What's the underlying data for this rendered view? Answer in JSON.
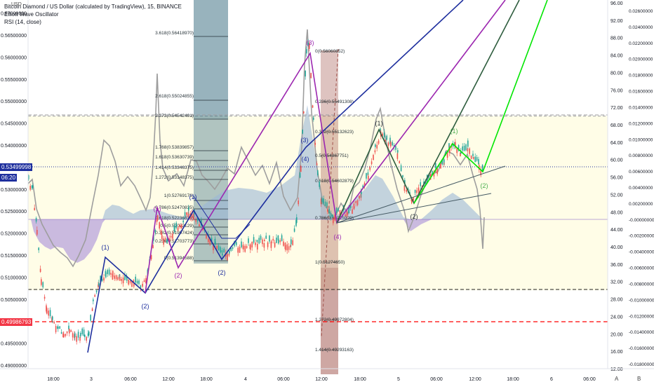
{
  "header": {
    "title": "Bitcoin Diamond / US Dollar (calculated by TradingView), 15, BINANCE",
    "indicators": [
      "Elliott Wave Oscillator",
      "RSI (14, close)"
    ],
    "usd_label": "USD"
  },
  "price_tags": {
    "current": "0.53499998",
    "countdown": "06:20",
    "red_line": "0.49986793"
  },
  "footer": {
    "auto": "A",
    "log": "B"
  },
  "chart_data": {
    "type": "line",
    "title": "Bitcoin Diamond / US Dollar (calculated by TradingView), 15, BINANCE",
    "y_left": {
      "range": [
        0.49,
        0.57
      ],
      "ticks": [
        "0.57000000",
        "0.56500000",
        "0.56000000",
        "0.55500000",
        "0.55000000",
        "0.54500000",
        "0.54000000",
        "0.53500000",
        "0.53000000",
        "0.52500000",
        "0.52000000",
        "0.51500000",
        "0.51000000",
        "0.50500000",
        "0.50000000",
        "0.49500000",
        "0.49000000"
      ]
    },
    "y_right_rsi": {
      "range": [
        12,
        96
      ],
      "ticks": [
        "96.00",
        "92.00",
        "88.00",
        "84.00",
        "80.00",
        "76.00",
        "72.00",
        "68.00",
        "64.00",
        "60.00",
        "56.00",
        "52.00",
        "48.00",
        "44.00",
        "40.00",
        "36.00",
        "32.00",
        "28.00",
        "24.00",
        "20.00",
        "16.00",
        "12.00"
      ]
    },
    "y_right_ewo": {
      "range": [
        -0.018,
        0.026
      ],
      "ticks": [
        "0.02600000",
        "0.02400000",
        "0.02200000",
        "0.02000000",
        "0.01800000",
        "0.01600000",
        "0.01400000",
        "0.01200000",
        "0.01000000",
        "0.00800000",
        "0.00600000",
        "0.00400000",
        "0.00200000",
        "-0.00000000",
        "-0.00200000",
        "-0.00400000",
        "-0.00600000",
        "-0.00800000",
        "-0.01000000",
        "-0.01200000",
        "-0.01400000",
        "-0.01600000",
        "-0.01800000"
      ]
    },
    "x_ticks": [
      "18:00",
      "3",
      "06:00",
      "12:00",
      "18:00",
      "4",
      "06:00",
      "12:00",
      "18:00",
      "5",
      "06:00",
      "12:00",
      "18:00",
      "6",
      "06:00"
    ],
    "fib_labels_left": [
      "3.618(0.56418970)",
      "2.618(0.55024855)",
      "2.272(0.54542491)",
      "1.768(0.53839857)",
      "1.618(0.53630739)",
      "1.414(0.53346375)",
      "1.272(0.53148375)",
      "1(0.52769176)",
      "0.786(0.52470835)",
      "0.618(0.52236635)",
      "0.5(0.52072129)",
      "0.382(0.51907424)",
      "0.236(0.51703773)",
      "0(0.51394588)"
    ],
    "fib_labels_right": [
      "0(0.56060852)",
      "0.236(0.55491308)",
      "0.382(0.55132623)",
      "0.5(0.54867751)",
      "0.618(0.54602879)",
      "0.786(0.54225929)",
      "1(0.51274650)",
      "1.272(0.49972804)",
      "1.414(0.49293163)"
    ],
    "wave_labels": [
      {
        "t": "(1)",
        "c": "#1e2f9e"
      },
      {
        "t": "(2)",
        "c": "#1e2f9e"
      },
      {
        "t": "(1)",
        "c": "#9c27b0"
      },
      {
        "t": "(2)",
        "c": "#9c27b0"
      },
      {
        "t": "(1)",
        "c": "#1e2f9e"
      },
      {
        "t": "(2)",
        "c": "#1e2f9e"
      },
      {
        "t": "(3)",
        "c": "#1e2f9e"
      },
      {
        "t": "(4)",
        "c": "#1e2f9e"
      },
      {
        "t": "(3)",
        "c": "#9c27b0"
      },
      {
        "t": "(4)",
        "c": "#9c27b0"
      },
      {
        "t": "(1)",
        "c": "#263238"
      },
      {
        "t": "(2)",
        "c": "#263238"
      },
      {
        "t": "(1)",
        "c": "#4caf50"
      },
      {
        "t": "(2)",
        "c": "#4caf50"
      }
    ],
    "candles_low_high": [
      [
        0.518,
        0.534
      ],
      [
        0.4945,
        0.519
      ],
      [
        0.496,
        0.515
      ],
      [
        0.505,
        0.517
      ],
      [
        0.5085,
        0.516
      ],
      [
        0.5095,
        0.525
      ],
      [
        0.514,
        0.526
      ],
      [
        0.517,
        0.523
      ],
      [
        0.516,
        0.5225
      ],
      [
        0.5175,
        0.5225
      ],
      [
        0.5165,
        0.523
      ],
      [
        0.521,
        0.542
      ],
      [
        0.544,
        0.568
      ],
      [
        0.52,
        0.545
      ],
      [
        0.519,
        0.532
      ],
      [
        0.529,
        0.546
      ],
      [
        0.527,
        0.545
      ],
      [
        0.52,
        0.542
      ],
      [
        0.524,
        0.535
      ],
      [
        0.5295,
        0.5445
      ],
      [
        0.532,
        0.538
      ],
      [
        0.532,
        0.539
      ],
      [
        0.5325,
        0.5385
      ]
    ],
    "colors": {
      "up": "#26a69a",
      "down": "#ef5350",
      "ewo_pos": "#9bb7d7",
      "ewo_neg": "#b39ddb",
      "rsi": "#9e9e9e",
      "fib_box": "#4f7f90",
      "target_box": "#a0524b",
      "red_dash": "#ff0000"
    }
  }
}
